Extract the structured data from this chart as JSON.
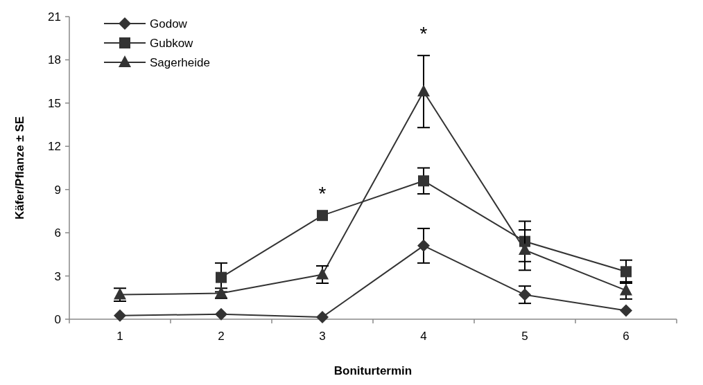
{
  "chart_data": {
    "type": "line",
    "xlabel": "Boniturtermin",
    "ylabel": "Käfer/Pflanze ± SE",
    "categories": [
      "1",
      "2",
      "3",
      "4",
      "5",
      "6"
    ],
    "series": [
      {
        "name": "Godow",
        "color": "#333333",
        "marker": "diamond",
        "values": [
          0.25,
          0.35,
          0.15,
          5.1,
          1.7,
          0.6
        ],
        "errors": [
          null,
          null,
          null,
          1.2,
          0.6,
          null
        ]
      },
      {
        "name": "Gubkow",
        "color": "#333333",
        "marker": "square",
        "values": [
          null,
          2.9,
          7.2,
          9.6,
          5.4,
          3.3
        ],
        "errors": [
          null,
          1.0,
          null,
          0.9,
          1.4,
          0.8
        ]
      },
      {
        "name": "Sagerheide",
        "color": "#333333",
        "marker": "triangle",
        "values": [
          1.7,
          1.8,
          3.1,
          15.8,
          4.8,
          2.0
        ],
        "errors": [
          0.45,
          0.35,
          0.6,
          2.5,
          1.4,
          0.6
        ]
      }
    ],
    "ylim": [
      0,
      21
    ],
    "yticks": [
      0,
      3,
      6,
      9,
      12,
      15,
      18,
      21
    ],
    "grid": false,
    "legend": "top left",
    "line_style": "solid",
    "annotations": [
      {
        "text": "*",
        "x": "3",
        "y": 7.2
      },
      {
        "text": "*",
        "x": "4",
        "y": 15.8
      }
    ]
  }
}
